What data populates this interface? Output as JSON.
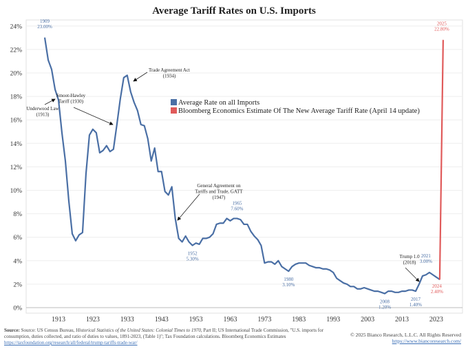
{
  "chart_data": {
    "type": "line",
    "title": "Average Tariff Rates on U.S. Imports",
    "xlabel": "",
    "ylabel": "",
    "xlim": [
      1906,
      2033
    ],
    "ylim": [
      0,
      24
    ],
    "y_ticks": [
      "0%",
      "2%",
      "4%",
      "6%",
      "8%",
      "10%",
      "12%",
      "14%",
      "16%",
      "18%",
      "20%",
      "22%",
      "24%"
    ],
    "x_ticks": [
      "1913",
      "1923",
      "1933",
      "1943",
      "1953",
      "1963",
      "1973",
      "1983",
      "1993",
      "2003",
      "2013",
      "2023"
    ],
    "grid": "horizontal",
    "legend_position": "center-right",
    "series": [
      {
        "name": "Average Rate on all Imports",
        "color": "#4a6fa5",
        "x": [
          1909,
          1910,
          1911,
          1912,
          1913,
          1914,
          1915,
          1916,
          1917,
          1918,
          1919,
          1920,
          1921,
          1922,
          1923,
          1924,
          1925,
          1926,
          1927,
          1928,
          1929,
          1930,
          1931,
          1932,
          1933,
          1934,
          1935,
          1936,
          1937,
          1938,
          1939,
          1940,
          1941,
          1942,
          1943,
          1944,
          1945,
          1946,
          1947,
          1948,
          1949,
          1950,
          1951,
          1952,
          1953,
          1954,
          1955,
          1956,
          1957,
          1958,
          1959,
          1960,
          1961,
          1962,
          1963,
          1964,
          1965,
          1966,
          1967,
          1968,
          1969,
          1970,
          1971,
          1972,
          1973,
          1974,
          1975,
          1976,
          1977,
          1978,
          1979,
          1980,
          1981,
          1982,
          1983,
          1984,
          1985,
          1986,
          1987,
          1988,
          1989,
          1990,
          1991,
          1992,
          1993,
          1994,
          1995,
          1996,
          1997,
          1998,
          1999,
          2000,
          2001,
          2002,
          2003,
          2004,
          2005,
          2006,
          2007,
          2008,
          2009,
          2010,
          2011,
          2012,
          2013,
          2014,
          2015,
          2016,
          2017,
          2018,
          2019,
          2020,
          2021,
          2022,
          2023,
          2024
        ],
        "y": [
          23.0,
          21.1,
          20.3,
          18.6,
          17.7,
          14.9,
          12.5,
          9.1,
          6.3,
          5.7,
          6.2,
          6.4,
          11.4,
          14.7,
          15.2,
          14.9,
          13.2,
          13.4,
          13.8,
          13.3,
          13.5,
          15.6,
          17.8,
          19.6,
          19.8,
          18.4,
          17.5,
          16.8,
          15.6,
          15.5,
          14.4,
          12.5,
          13.6,
          11.6,
          11.6,
          9.9,
          9.6,
          10.3,
          7.6,
          5.9,
          5.6,
          6.1,
          5.6,
          5.3,
          5.5,
          5.4,
          5.9,
          5.9,
          6.0,
          6.3,
          7.1,
          7.2,
          7.2,
          7.6,
          7.4,
          7.6,
          7.6,
          7.5,
          7.1,
          7.1,
          6.5,
          6.1,
          5.8,
          5.3,
          3.8,
          3.9,
          3.9,
          3.7,
          4.0,
          3.5,
          3.3,
          3.1,
          3.5,
          3.7,
          3.8,
          3.8,
          3.8,
          3.6,
          3.5,
          3.4,
          3.4,
          3.3,
          3.3,
          3.2,
          3.0,
          2.5,
          2.3,
          2.1,
          2.0,
          1.8,
          1.8,
          1.6,
          1.6,
          1.7,
          1.6,
          1.5,
          1.4,
          1.4,
          1.3,
          1.2,
          1.4,
          1.4,
          1.3,
          1.3,
          1.4,
          1.4,
          1.5,
          1.5,
          1.4,
          2.0,
          2.7,
          2.8,
          3.0,
          2.8,
          2.6,
          2.4
        ]
      },
      {
        "name": "Bloomberg Economics Estimate Of The New Average Tariff Rate (April 14 update)",
        "color": "#e05a5a",
        "x": [
          2024,
          2025
        ],
        "y": [
          2.4,
          22.8
        ]
      }
    ],
    "data_labels": [
      {
        "year": "1909",
        "value": "23.00%",
        "x": 1909,
        "y": 23.0,
        "series": 0
      },
      {
        "year": "1952",
        "value": "5.30%",
        "x": 1952,
        "y": 5.3,
        "series": 0
      },
      {
        "year": "1965",
        "value": "7.60%",
        "x": 1965,
        "y": 7.6,
        "series": 0
      },
      {
        "year": "1980",
        "value": "3.10%",
        "x": 1980,
        "y": 3.1,
        "series": 0
      },
      {
        "year": "2008",
        "value": "1.20%",
        "x": 2008,
        "y": 1.2,
        "series": 0
      },
      {
        "year": "2017",
        "value": "1.40%",
        "x": 2017,
        "y": 1.4,
        "series": 0
      },
      {
        "year": "2021",
        "value": "3.00%",
        "x": 2021,
        "y": 3.0,
        "series": 0
      },
      {
        "year": "2024",
        "value": "2.40%",
        "x": 2024,
        "y": 2.4,
        "series": 1
      },
      {
        "year": "2025",
        "value": "22.80%",
        "x": 2025,
        "y": 22.8,
        "series": 1
      }
    ],
    "annotations": [
      {
        "line1": "Underwood Law",
        "line2": "(1913)",
        "x": 1913,
        "y": 17.7
      },
      {
        "line1": "Smoot-Hawley",
        "line2": "Tariff (1930)",
        "x": 1930,
        "y": 15.6
      },
      {
        "line1": "Trade Agreement Act",
        "line2": "(1934)",
        "x": 1934,
        "y": 19.0
      },
      {
        "line1": "General Agreement on",
        "line2": "Tariffs and Trade, GATT",
        "line3": "(1947)",
        "x": 1947,
        "y": 7.6
      },
      {
        "line1": "Trump 1.0",
        "line2": "(2018)",
        "x": 2018,
        "y": 2.4
      }
    ]
  },
  "footer": {
    "source_label": "Source:",
    "source_text1": " Source: US Census Bureau, ",
    "source_italic1": "Historical Statistics of the United States: Colonial Times to 1970",
    "source_text2": ", Part II; US International Trade Commission, \"U.S. imports for consumption, duties collected, and ratio of duties to values, 1891-2023, (Table 1)\"; Tax Foundation calculations. Bloomberg Economics Estimates",
    "source_link": "https://taxfoundation.org/research/all/federal/trump-tariffs-trade-war/",
    "copyright": "© 2025 Bianco Research, L.L.C. All Rights Reserved",
    "website": "https://www.biancoresearch.com/"
  }
}
